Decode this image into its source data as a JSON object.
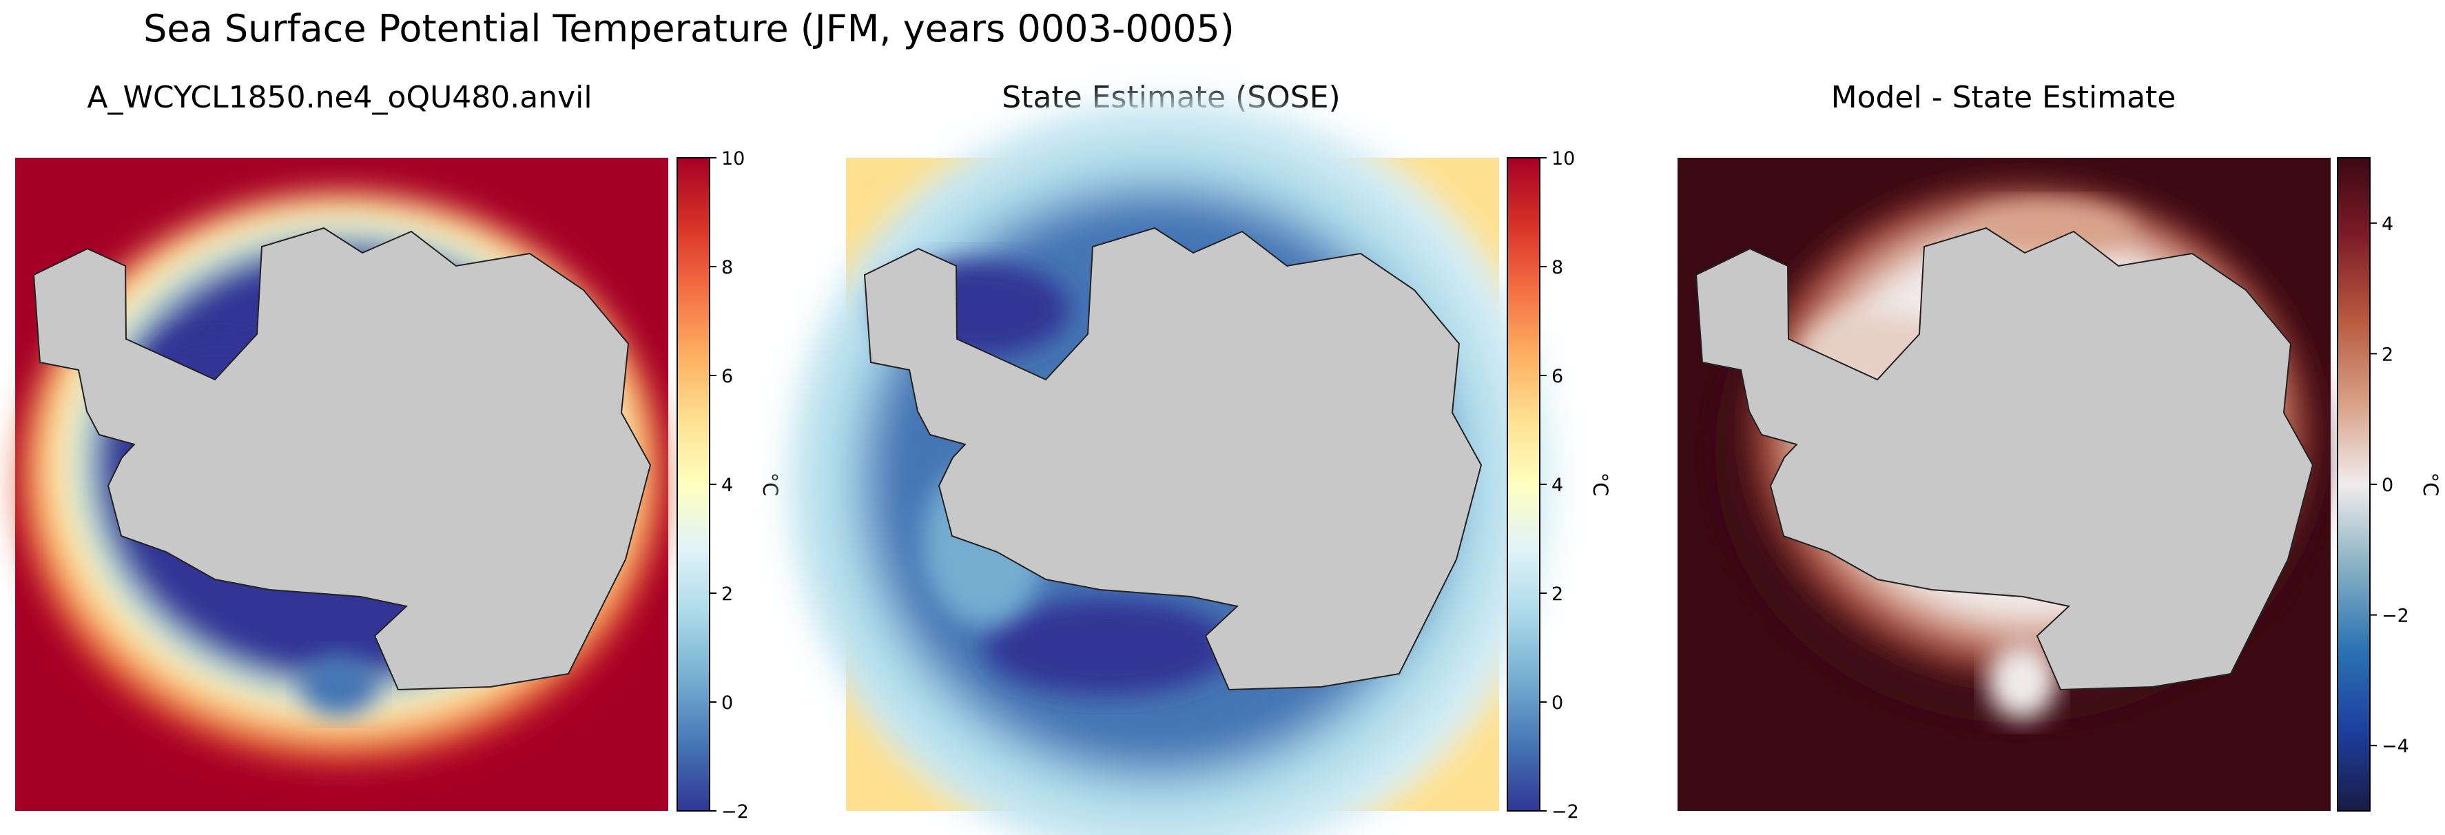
{
  "figure": {
    "title": "Sea Surface Potential Temperature (JFM, years 0003-0005)"
  },
  "chart_data": [
    {
      "type": "heatmap",
      "title": "A_WCYCL1850.ne4_oQU480.anvil",
      "colormap": "RdYlBu_r",
      "land_color": "#c8c8c8",
      "colorbar": {
        "label": "°C",
        "ticks": [
          -2,
          0,
          2,
          4,
          6,
          8,
          10
        ],
        "range": [
          -2,
          10
        ]
      },
      "field_summary": {
        "open_ocean_value": 10,
        "near_coast_min": -2
      }
    },
    {
      "type": "heatmap",
      "title": "State Estimate (SOSE)",
      "colormap": "RdYlBu_r",
      "land_color": "#c8c8c8",
      "colorbar": {
        "label": "°C",
        "ticks": [
          -2,
          0,
          2,
          4,
          6,
          8,
          10
        ],
        "range": [
          -2,
          10
        ]
      },
      "field_summary": {
        "open_ocean_value": 5,
        "near_coast_min": -2
      }
    },
    {
      "type": "heatmap",
      "title": "Model - State Estimate",
      "colormap": "balance",
      "land_color": "#c8c8c8",
      "colorbar": {
        "label": "°C",
        "ticks": [
          -4,
          -2,
          0,
          2,
          4
        ],
        "range": [
          -5,
          5
        ]
      },
      "field_summary": {
        "open_ocean_value": 5,
        "near_coast_min": 0
      }
    }
  ]
}
